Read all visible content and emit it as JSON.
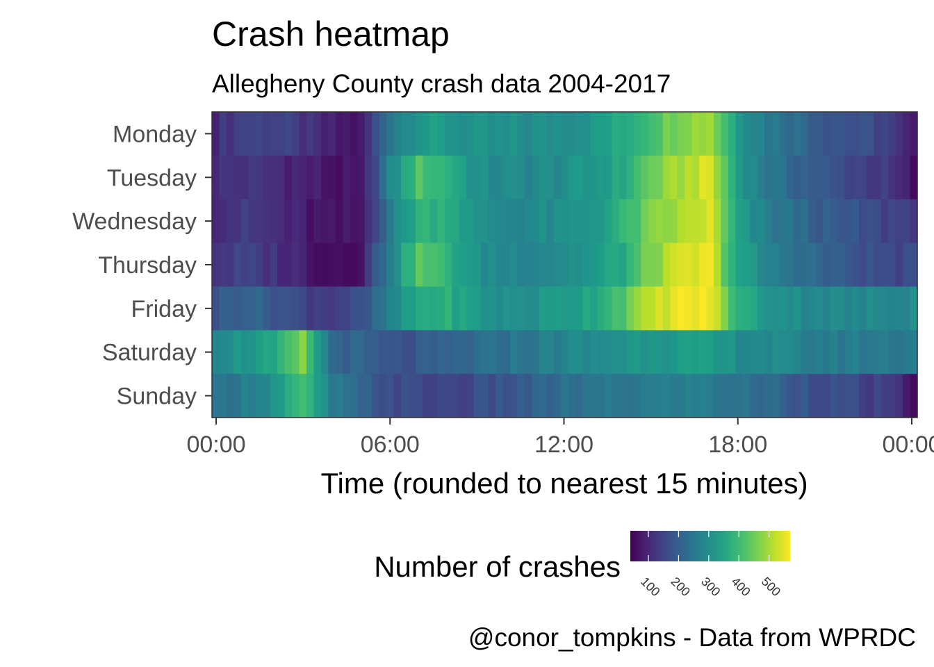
{
  "chart_data": {
    "type": "heatmap",
    "title": "Crash heatmap",
    "subtitle": "Allegheny County crash data 2004-2017",
    "xlabel": "Time (rounded to nearest 15 minutes)",
    "ylabel": "",
    "caption": "@conor_tompkins - Data from WPRDC",
    "y_categories": [
      "Monday",
      "Tuesday",
      "Wednesday",
      "Thursday",
      "Friday",
      "Saturday",
      "Sunday"
    ],
    "x_ticks": [
      "00:00",
      "06:00",
      "12:00",
      "18:00",
      "00:00"
    ],
    "x_tick_hours": [
      0,
      6,
      12,
      18,
      24
    ],
    "x_bin_minutes": 15,
    "bins_per_day": 97,
    "color_scale": "viridis",
    "color_range": [
      40,
      570
    ],
    "legend": {
      "title": "Number of crashes",
      "ticks": [
        "100",
        "200",
        "300",
        "400",
        "500"
      ],
      "tick_values": [
        100,
        200,
        300,
        400,
        500
      ],
      "placement": "bottom"
    },
    "profiles": {
      "Monday": [
        [
          0,
          110
        ],
        [
          1,
          150
        ],
        [
          2,
          150
        ],
        [
          3,
          120
        ],
        [
          4,
          80
        ],
        [
          5,
          70
        ],
        [
          6,
          260
        ],
        [
          7,
          330
        ],
        [
          8,
          320
        ],
        [
          9,
          300
        ],
        [
          10,
          300
        ],
        [
          11,
          300
        ],
        [
          12,
          310
        ],
        [
          13,
          320
        ],
        [
          14,
          360
        ],
        [
          15,
          420
        ],
        [
          16,
          480
        ],
        [
          17,
          500
        ],
        [
          18,
          330
        ],
        [
          19,
          260
        ],
        [
          20,
          230
        ],
        [
          21,
          190
        ],
        [
          22,
          170
        ],
        [
          23,
          150
        ],
        [
          24,
          60
        ]
      ],
      "Tuesday": [
        [
          0,
          110
        ],
        [
          1,
          120
        ],
        [
          2,
          110
        ],
        [
          3,
          90
        ],
        [
          4,
          70
        ],
        [
          5,
          60
        ],
        [
          6,
          280
        ],
        [
          7,
          420
        ],
        [
          8,
          380
        ],
        [
          9,
          300
        ],
        [
          10,
          290
        ],
        [
          11,
          290
        ],
        [
          12,
          300
        ],
        [
          13,
          320
        ],
        [
          14,
          360
        ],
        [
          15,
          450
        ],
        [
          16,
          500
        ],
        [
          17,
          540
        ],
        [
          18,
          330
        ],
        [
          19,
          250
        ],
        [
          20,
          210
        ],
        [
          21,
          180
        ],
        [
          22,
          150
        ],
        [
          23,
          130
        ],
        [
          24,
          60
        ]
      ],
      "Wednesday": [
        [
          0,
          120
        ],
        [
          1,
          130
        ],
        [
          2,
          110
        ],
        [
          3,
          80
        ],
        [
          4,
          60
        ],
        [
          5,
          70
        ],
        [
          6,
          260
        ],
        [
          7,
          380
        ],
        [
          8,
          380
        ],
        [
          9,
          300
        ],
        [
          10,
          290
        ],
        [
          11,
          290
        ],
        [
          12,
          300
        ],
        [
          13,
          320
        ],
        [
          14,
          380
        ],
        [
          15,
          460
        ],
        [
          16,
          500
        ],
        [
          17,
          540
        ],
        [
          18,
          330
        ],
        [
          19,
          260
        ],
        [
          20,
          230
        ],
        [
          21,
          190
        ],
        [
          22,
          170
        ],
        [
          23,
          150
        ],
        [
          24,
          140
        ]
      ],
      "Thursday": [
        [
          0,
          130
        ],
        [
          1,
          140
        ],
        [
          2,
          120
        ],
        [
          3,
          90
        ],
        [
          4,
          60
        ],
        [
          5,
          80
        ],
        [
          6,
          280
        ],
        [
          7,
          430
        ],
        [
          8,
          380
        ],
        [
          9,
          300
        ],
        [
          10,
          290
        ],
        [
          11,
          290
        ],
        [
          12,
          300
        ],
        [
          13,
          320
        ],
        [
          14,
          360
        ],
        [
          15,
          470
        ],
        [
          16,
          530
        ],
        [
          17,
          550
        ],
        [
          18,
          340
        ],
        [
          19,
          270
        ],
        [
          20,
          240
        ],
        [
          21,
          200
        ],
        [
          22,
          180
        ],
        [
          23,
          160
        ],
        [
          24,
          150
        ]
      ],
      "Friday": [
        [
          0,
          180
        ],
        [
          1,
          220
        ],
        [
          2,
          190
        ],
        [
          3,
          150
        ],
        [
          4,
          140
        ],
        [
          5,
          160
        ],
        [
          6,
          270
        ],
        [
          7,
          360
        ],
        [
          8,
          370
        ],
        [
          9,
          320
        ],
        [
          10,
          300
        ],
        [
          11,
          310
        ],
        [
          12,
          330
        ],
        [
          13,
          360
        ],
        [
          14,
          430
        ],
        [
          15,
          520
        ],
        [
          16,
          560
        ],
        [
          17,
          560
        ],
        [
          18,
          370
        ],
        [
          19,
          320
        ],
        [
          20,
          300
        ],
        [
          21,
          290
        ],
        [
          22,
          280
        ],
        [
          23,
          290
        ],
        [
          24,
          300
        ]
      ],
      "Saturday": [
        [
          0,
          300
        ],
        [
          1,
          320
        ],
        [
          2,
          340
        ],
        [
          3,
          460
        ],
        [
          4,
          220
        ],
        [
          5,
          200
        ],
        [
          6,
          170
        ],
        [
          7,
          180
        ],
        [
          8,
          200
        ],
        [
          9,
          220
        ],
        [
          10,
          240
        ],
        [
          11,
          260
        ],
        [
          12,
          280
        ],
        [
          13,
          290
        ],
        [
          14,
          310
        ],
        [
          15,
          330
        ],
        [
          16,
          330
        ],
        [
          17,
          320
        ],
        [
          18,
          300
        ],
        [
          19,
          290
        ],
        [
          20,
          270
        ],
        [
          21,
          260
        ],
        [
          22,
          260
        ],
        [
          23,
          260
        ],
        [
          24,
          260
        ]
      ],
      "Sunday": [
        [
          0,
          230
        ],
        [
          1,
          270
        ],
        [
          2,
          310
        ],
        [
          3,
          400
        ],
        [
          4,
          260
        ],
        [
          5,
          200
        ],
        [
          6,
          170
        ],
        [
          7,
          150
        ],
        [
          8,
          150
        ],
        [
          9,
          160
        ],
        [
          10,
          180
        ],
        [
          11,
          200
        ],
        [
          12,
          230
        ],
        [
          13,
          240
        ],
        [
          14,
          250
        ],
        [
          15,
          260
        ],
        [
          16,
          270
        ],
        [
          17,
          260
        ],
        [
          18,
          240
        ],
        [
          19,
          220
        ],
        [
          20,
          190
        ],
        [
          21,
          170
        ],
        [
          22,
          150
        ],
        [
          23,
          130
        ],
        [
          24,
          70
        ]
      ]
    },
    "grid": false
  }
}
